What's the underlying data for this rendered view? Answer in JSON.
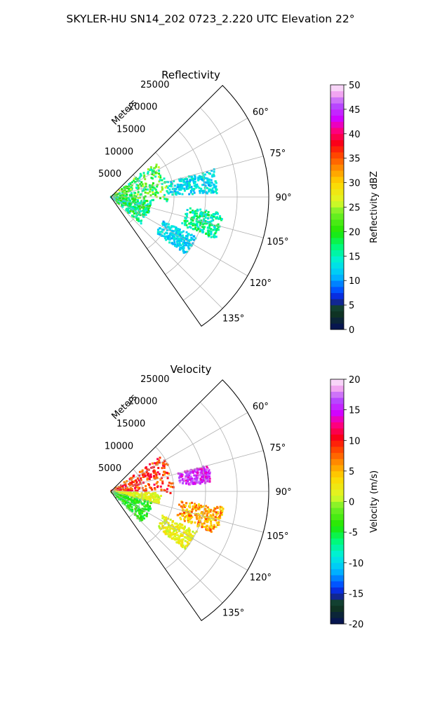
{
  "figure_title": "SKYLER-HU  SN14_202  0723_2.220 UTC Elevation 22°",
  "range_unit_label": "Meters",
  "chart_data": [
    {
      "type": "heatmap",
      "projection": "polar-sector",
      "title": "Reflectivity",
      "azimuth_range_deg": [
        45,
        145
      ],
      "azimuth_ticks": [
        "60°",
        "75°",
        "90°",
        "105°",
        "120°",
        "135°"
      ],
      "azimuth_tick_values": [
        60,
        75,
        90,
        105,
        120,
        135
      ],
      "range_ticks": [
        "5000",
        "10000",
        "15000",
        "20000",
        "25000"
      ],
      "range_tick_values": [
        5000,
        10000,
        15000,
        20000,
        25000
      ],
      "rmax": 25000,
      "grid": true,
      "colorbar": {
        "label": "Reflectivity dBZ",
        "range": [
          0,
          50
        ],
        "ticks": [
          "0",
          "5",
          "10",
          "15",
          "20",
          "25",
          "30",
          "35",
          "40",
          "45",
          "50"
        ],
        "tick_values": [
          0,
          5,
          10,
          15,
          20,
          25,
          30,
          35,
          40,
          45,
          50
        ]
      },
      "echo_regions": [
        {
          "az": [
            52,
            95
          ],
          "r": [
            0,
            9000
          ],
          "value": [
            14,
            26
          ]
        },
        {
          "az": [
            95,
            132
          ],
          "r": [
            0,
            6500
          ],
          "value": [
            12,
            22
          ]
        },
        {
          "az": [
            75,
            88
          ],
          "r": [
            9000,
            17000
          ],
          "value": [
            10,
            16
          ]
        },
        {
          "az": [
            98,
            112
          ],
          "r": [
            12000,
            18000
          ],
          "value": [
            12,
            20
          ]
        },
        {
          "az": [
            115,
            128
          ],
          "r": [
            9000,
            15000
          ],
          "value": [
            10,
            15
          ]
        }
      ]
    },
    {
      "type": "heatmap",
      "projection": "polar-sector",
      "title": "Velocity",
      "azimuth_range_deg": [
        45,
        145
      ],
      "azimuth_ticks": [
        "60°",
        "75°",
        "90°",
        "105°",
        "120°",
        "135°"
      ],
      "azimuth_tick_values": [
        60,
        75,
        90,
        105,
        120,
        135
      ],
      "range_ticks": [
        "5000",
        "10000",
        "15000",
        "20000",
        "25000"
      ],
      "range_tick_values": [
        5000,
        10000,
        15000,
        20000,
        25000
      ],
      "rmax": 25000,
      "grid": true,
      "colorbar": {
        "label": "Velocity (m/s)",
        "range": [
          -20,
          20
        ],
        "ticks": [
          "-20",
          "-15",
          "-10",
          "-5",
          "0",
          "5",
          "10",
          "15",
          "20"
        ],
        "tick_values": [
          -20,
          -15,
          -10,
          -5,
          0,
          5,
          10,
          15,
          20
        ]
      },
      "echo_regions": [
        {
          "az": [
            55,
            92
          ],
          "r": [
            0,
            10000
          ],
          "value": [
            6,
            12
          ]
        },
        {
          "az": [
            75,
            85
          ],
          "r": [
            11000,
            16000
          ],
          "value": [
            13,
            18
          ]
        },
        {
          "az": [
            92,
            105
          ],
          "r": [
            0,
            8000
          ],
          "value": [
            0,
            3
          ]
        },
        {
          "az": [
            98,
            112
          ],
          "r": [
            11000,
            18000
          ],
          "value": [
            2,
            9
          ]
        },
        {
          "az": [
            105,
            135
          ],
          "r": [
            0,
            7000
          ],
          "value": [
            -6,
            -2
          ]
        },
        {
          "az": [
            115,
            128
          ],
          "r": [
            9000,
            15000
          ],
          "value": [
            0,
            4
          ]
        }
      ]
    }
  ]
}
